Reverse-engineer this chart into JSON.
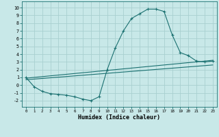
{
  "xlabel": "Humidex (Indice chaleur)",
  "ylabel": "",
  "bg_color": "#c8e8e8",
  "grid_color": "#a8d0d0",
  "line_color": "#1a7070",
  "xlim": [
    -0.5,
    23.5
  ],
  "ylim": [
    -2.8,
    10.8
  ],
  "xticks": [
    0,
    1,
    2,
    3,
    4,
    5,
    6,
    7,
    8,
    9,
    10,
    11,
    12,
    13,
    14,
    15,
    16,
    17,
    18,
    19,
    20,
    21,
    22,
    23
  ],
  "yticks": [
    -2,
    -1,
    0,
    1,
    2,
    3,
    4,
    5,
    6,
    7,
    8,
    9,
    10
  ],
  "curve1_x": [
    0,
    1,
    2,
    3,
    4,
    5,
    6,
    7,
    8,
    9,
    10,
    11,
    12,
    13,
    14,
    15,
    16,
    17,
    18,
    19,
    20,
    21,
    22,
    23
  ],
  "curve1_y": [
    1.0,
    -0.2,
    -0.8,
    -1.1,
    -1.2,
    -1.3,
    -1.5,
    -1.8,
    -2.0,
    -1.5,
    2.0,
    4.8,
    7.0,
    8.6,
    9.2,
    9.8,
    9.8,
    9.5,
    6.5,
    4.2,
    3.8,
    3.1,
    3.0,
    3.1
  ],
  "line2_x": [
    0,
    23
  ],
  "line2_y": [
    0.9,
    3.2
  ],
  "line3_x": [
    0,
    23
  ],
  "line3_y": [
    0.7,
    2.6
  ]
}
